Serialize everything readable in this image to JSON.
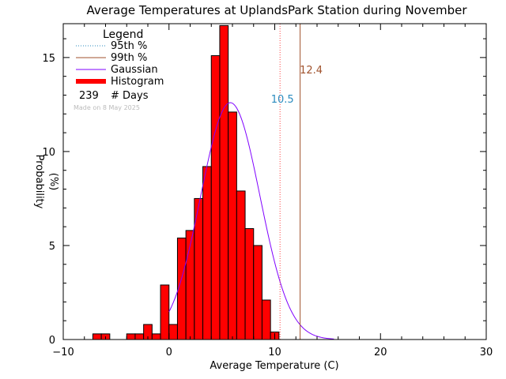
{
  "chart_data": {
    "type": "bar",
    "title": "Average Temperatures at UplandsPark Station during November",
    "xlabel": "Average Temperature (C)",
    "ylabel": "Probability\n(%)",
    "xlim": [
      -10,
      30
    ],
    "ylim": [
      0,
      16.8
    ],
    "xticks": [
      -10,
      0,
      10,
      20,
      30
    ],
    "yticks": [
      0,
      5,
      10,
      15
    ],
    "bin_width": 0.8,
    "bins": [
      {
        "x0": -7.2,
        "value": 0.3
      },
      {
        "x0": -6.4,
        "value": 0.3
      },
      {
        "x0": -5.6,
        "value": 0.0
      },
      {
        "x0": -4.8,
        "value": 0.0
      },
      {
        "x0": -4.0,
        "value": 0.3
      },
      {
        "x0": -3.2,
        "value": 0.3
      },
      {
        "x0": -2.4,
        "value": 0.8
      },
      {
        "x0": -1.6,
        "value": 0.3
      },
      {
        "x0": -0.8,
        "value": 2.9
      },
      {
        "x0": 0.0,
        "value": 0.8
      },
      {
        "x0": 0.8,
        "value": 5.4
      },
      {
        "x0": 1.6,
        "value": 5.8
      },
      {
        "x0": 2.4,
        "value": 7.5
      },
      {
        "x0": 3.2,
        "value": 9.2
      },
      {
        "x0": 4.0,
        "value": 15.1
      },
      {
        "x0": 4.8,
        "value": 16.7
      },
      {
        "x0": 5.6,
        "value": 12.1
      },
      {
        "x0": 6.4,
        "value": 7.9
      },
      {
        "x0": 7.2,
        "value": 5.9
      },
      {
        "x0": 8.0,
        "value": 5.0
      },
      {
        "x0": 8.8,
        "value": 2.1
      },
      {
        "x0": 9.6,
        "value": 0.4
      }
    ],
    "gaussian": {
      "mean": 5.8,
      "sigma": 2.8,
      "peak": 12.6,
      "x_range": [
        0.0,
        15.6
      ],
      "color": "#7f00ff"
    },
    "percentile_95": {
      "value": 10.5,
      "label": "10.5",
      "color": "#ff4040",
      "label_color": "#2a8bbf"
    },
    "percentile_99": {
      "value": 12.4,
      "label": "12.4",
      "color": "#a0522d",
      "label_color": "#a0522d"
    },
    "histogram_color": "#ff0000",
    "legend": {
      "title": "Legend",
      "items": [
        {
          "label": "95th %",
          "style": "dotted",
          "color": "#2a8bbf"
        },
        {
          "label": "99th %",
          "style": "solid",
          "color": "#a0522d"
        },
        {
          "label": "Gaussian",
          "style": "solid",
          "color": "#7f00ff"
        },
        {
          "label": "Histogram",
          "style": "thick",
          "color": "#ff0000"
        }
      ],
      "count_value": "239",
      "count_label": "# Days",
      "made_on": "Made on 8 May 2025"
    }
  }
}
